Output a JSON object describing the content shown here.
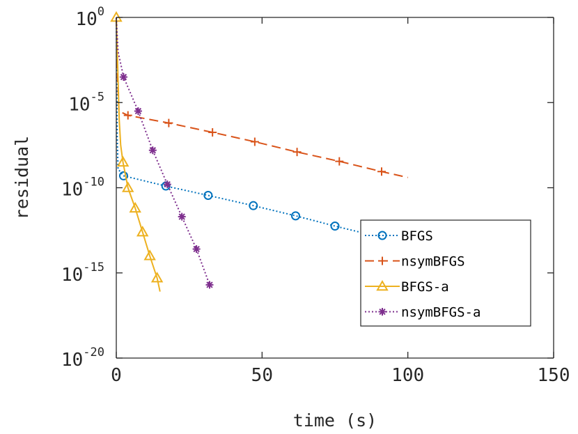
{
  "chart_data": {
    "type": "line",
    "xlabel": "time (s)",
    "ylabel": "residual",
    "xlim": [
      0,
      150
    ],
    "ylim_log10": [
      -20,
      0
    ],
    "yscale": "log",
    "x_ticks": [
      "0",
      "50",
      "100",
      "150"
    ],
    "x_tick_values": [
      0,
      50,
      100,
      150
    ],
    "y_ticks": [
      {
        "base": "10",
        "exp": "0",
        "value": 0
      },
      {
        "base": "10",
        "exp": "-5",
        "value": -5
      },
      {
        "base": "10",
        "exp": "-10",
        "value": -10
      },
      {
        "base": "10",
        "exp": "-15",
        "value": -15
      },
      {
        "base": "10",
        "exp": "-20",
        "value": -20
      }
    ],
    "grid": false,
    "legend_position": "lower-right",
    "series": [
      {
        "name": "BFGS",
        "color": "#0072BD",
        "line_style": "dotted",
        "marker": "circle",
        "curve_log10": [
          [
            0,
            0
          ],
          [
            0.3,
            -7
          ],
          [
            0.6,
            -8.9
          ],
          [
            2.5,
            -9.3
          ],
          [
            17,
            -9.9
          ],
          [
            31.5,
            -10.45
          ],
          [
            47,
            -11.05
          ],
          [
            61.5,
            -11.65
          ],
          [
            75,
            -12.25
          ],
          [
            90.5,
            -12.9
          ]
        ],
        "markers_log10": [
          [
            2.5,
            -9.3
          ],
          [
            17,
            -9.9
          ],
          [
            31.5,
            -10.45
          ],
          [
            47,
            -11.05
          ],
          [
            61.5,
            -11.65
          ],
          [
            75,
            -12.25
          ],
          [
            90.5,
            -12.9
          ]
        ]
      },
      {
        "name": "nsymBFGS",
        "color": "#D95319",
        "line_style": "dashed",
        "marker": "plus",
        "curve_log10": [
          [
            0,
            0
          ],
          [
            0.4,
            -3.5
          ],
          [
            0.9,
            -5.5
          ],
          [
            4,
            -5.75
          ],
          [
            18,
            -6.2
          ],
          [
            33,
            -6.75
          ],
          [
            47.5,
            -7.3
          ],
          [
            62,
            -7.9
          ],
          [
            76.5,
            -8.45
          ],
          [
            91,
            -9.05
          ],
          [
            100,
            -9.4
          ]
        ],
        "markers_log10": [
          [
            4,
            -5.75
          ],
          [
            18,
            -6.2
          ],
          [
            33,
            -6.75
          ],
          [
            47.5,
            -7.3
          ],
          [
            62,
            -7.9
          ],
          [
            76.5,
            -8.45
          ],
          [
            91,
            -9.05
          ]
        ]
      },
      {
        "name": "BFGS-a",
        "color": "#EDB120",
        "line_style": "solid",
        "marker": "triangle",
        "curve_log10": [
          [
            0,
            0
          ],
          [
            0.5,
            -3
          ],
          [
            1,
            -6
          ],
          [
            1.5,
            -7.5
          ],
          [
            2.3,
            -8.5
          ],
          [
            4,
            -10
          ],
          [
            6.5,
            -11.2
          ],
          [
            9,
            -12.6
          ],
          [
            11.5,
            -14
          ],
          [
            14,
            -15.3
          ],
          [
            15,
            -16.1
          ]
        ],
        "markers_log10": [
          [
            0,
            0
          ],
          [
            2.3,
            -8.5
          ],
          [
            4,
            -10
          ],
          [
            6.5,
            -11.2
          ],
          [
            9,
            -12.6
          ],
          [
            11.5,
            -14
          ],
          [
            14,
            -15.3
          ]
        ]
      },
      {
        "name": "nsymBFGS-a",
        "color": "#7E2F8E",
        "line_style": "dotted",
        "marker": "asterisk",
        "curve_log10": [
          [
            0,
            0
          ],
          [
            0.6,
            -2
          ],
          [
            2.5,
            -3.5
          ],
          [
            7.5,
            -5.5
          ],
          [
            12.5,
            -7.8
          ],
          [
            17.5,
            -9.8
          ],
          [
            22.5,
            -11.7
          ],
          [
            27.5,
            -13.6
          ],
          [
            32,
            -15.7
          ]
        ],
        "markers_log10": [
          [
            2.5,
            -3.5
          ],
          [
            7.5,
            -5.5
          ],
          [
            12.5,
            -7.8
          ],
          [
            17.5,
            -9.8
          ],
          [
            22.5,
            -11.7
          ],
          [
            27.5,
            -13.6
          ],
          [
            32,
            -15.7
          ]
        ]
      }
    ]
  }
}
